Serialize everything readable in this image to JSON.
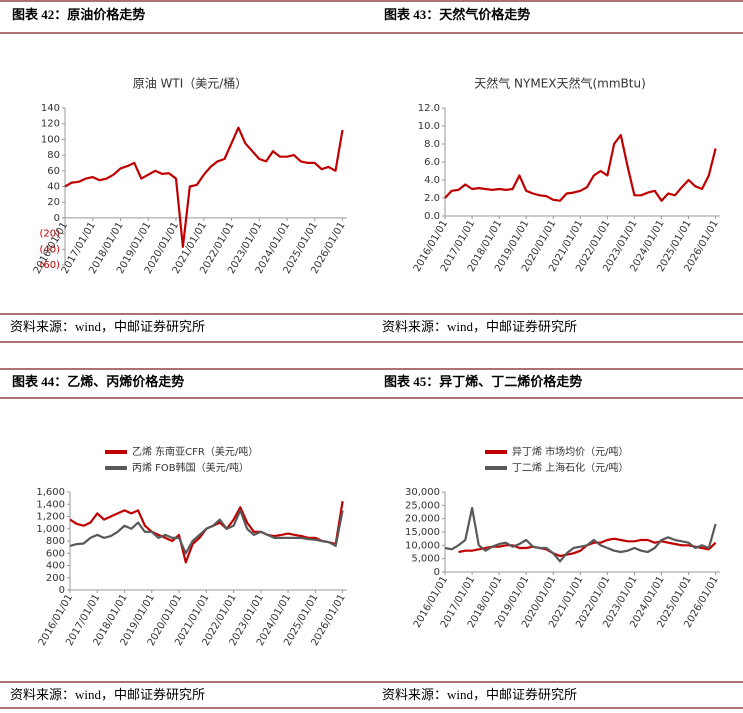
{
  "chart_data": [
    {
      "type": "line",
      "caption": "图表 42：原油价格走势",
      "source": "资料来源：wind，中邮证券研究所",
      "title": "原油 WTI（美元/桶）",
      "x": [
        "2016/01/01",
        "2016/04/01",
        "2016/07/01",
        "2016/10/01",
        "2017/01/01",
        "2017/04/01",
        "2017/07/01",
        "2017/10/01",
        "2018/01/01",
        "2018/04/01",
        "2018/07/01",
        "2018/10/01",
        "2019/01/01",
        "2019/04/01",
        "2019/07/01",
        "2019/10/01",
        "2020/01/01",
        "2020/04/01",
        "2020/07/01",
        "2020/10/01",
        "2021/01/01",
        "2021/04/01",
        "2021/07/01",
        "2021/10/01",
        "2022/01/01",
        "2022/04/01",
        "2022/07/01",
        "2022/10/01",
        "2023/01/01",
        "2023/04/01",
        "2023/07/01",
        "2023/10/01",
        "2024/01/01",
        "2024/04/01",
        "2024/07/01",
        "2024/10/01",
        "2025/01/01",
        "2025/04/01",
        "2025/07/01",
        "2025/10/01",
        "2026/01/01"
      ],
      "values": [
        40,
        45,
        46,
        50,
        52,
        48,
        50,
        55,
        63,
        66,
        70,
        50,
        55,
        60,
        56,
        57,
        50,
        -37,
        40,
        42,
        55,
        65,
        72,
        75,
        95,
        115,
        95,
        85,
        75,
        72,
        85,
        78,
        78,
        80,
        72,
        70,
        70,
        62,
        65,
        60,
        112
      ],
      "color": "#c00000",
      "xlim": [
        "2016/01/01",
        "2026/03/01"
      ],
      "ylim": [
        -60,
        140
      ],
      "yticks": [
        {
          "value": -60,
          "label": "(60)"
        },
        {
          "value": -40,
          "label": "(40)"
        },
        {
          "value": -20,
          "label": "(20)"
        },
        0,
        20,
        40,
        60,
        80,
        100,
        120,
        140
      ],
      "negative_tick_color": "#c00000",
      "xticks": [
        "2016/01/01",
        "2017/01/01",
        "2018/01/01",
        "2019/01/01",
        "2020/01/01",
        "2021/01/01",
        "2022/01/01",
        "2023/01/01",
        "2024/01/01",
        "2025/01/01",
        "2026/01/01"
      ]
    },
    {
      "type": "line",
      "caption": "图表 43：天然气价格走势",
      "source": "资料来源：wind，中邮证券研究所",
      "title": "天然气 NYMEX天然气(mmBtu)",
      "x": [
        "2016/01/01",
        "2016/04/01",
        "2016/07/01",
        "2016/10/01",
        "2017/01/01",
        "2017/04/01",
        "2017/07/01",
        "2017/10/01",
        "2018/01/01",
        "2018/04/01",
        "2018/07/01",
        "2018/10/01",
        "2019/01/01",
        "2019/04/01",
        "2019/07/01",
        "2019/10/01",
        "2020/01/01",
        "2020/04/01",
        "2020/07/01",
        "2020/10/01",
        "2021/01/01",
        "2021/04/01",
        "2021/07/01",
        "2021/10/01",
        "2022/01/01",
        "2022/04/01",
        "2022/07/01",
        "2022/10/01",
        "2023/01/01",
        "2023/04/01",
        "2023/07/01",
        "2023/10/01",
        "2024/01/01",
        "2024/04/01",
        "2024/07/01",
        "2024/10/01",
        "2025/01/01",
        "2025/04/01",
        "2025/07/01",
        "2025/10/01",
        "2026/01/01"
      ],
      "values": [
        2.0,
        2.8,
        2.9,
        3.5,
        3.0,
        3.1,
        3.0,
        2.9,
        3.0,
        2.9,
        3.0,
        4.5,
        2.8,
        2.5,
        2.3,
        2.2,
        1.8,
        1.7,
        2.5,
        2.6,
        2.8,
        3.2,
        4.5,
        5.0,
        4.5,
        8.0,
        9.0,
        5.5,
        2.3,
        2.3,
        2.6,
        2.8,
        1.7,
        2.5,
        2.3,
        3.2,
        4.0,
        3.3,
        3.0,
        4.5,
        7.5
      ],
      "color": "#c00000",
      "xlim": [
        "2016/01/01",
        "2026/03/01"
      ],
      "ylim": [
        0,
        12
      ],
      "yticks": [
        {
          "value": 0,
          "label": "0.0"
        },
        {
          "value": 2,
          "label": "2.0"
        },
        {
          "value": 4,
          "label": "4.0"
        },
        {
          "value": 6,
          "label": "6.0"
        },
        {
          "value": 8,
          "label": "8.0"
        },
        {
          "value": 10,
          "label": "10.0"
        },
        {
          "value": 12,
          "label": "12.0"
        }
      ],
      "xticks": [
        "2016/01/01",
        "2017/01/01",
        "2018/01/01",
        "2019/01/01",
        "2020/01/01",
        "2021/01/01",
        "2022/01/01",
        "2023/01/01",
        "2024/01/01",
        "2025/01/01",
        "2026/01/01"
      ]
    },
    {
      "type": "line",
      "caption": "图表 44：乙烯、丙烯价格走势",
      "source": "资料来源：wind，中邮证券研究所",
      "x": [
        "2016/01/01",
        "2016/04/01",
        "2016/07/01",
        "2016/10/01",
        "2017/01/01",
        "2017/04/01",
        "2017/07/01",
        "2017/10/01",
        "2018/01/01",
        "2018/04/01",
        "2018/07/01",
        "2018/10/01",
        "2019/01/01",
        "2019/04/01",
        "2019/07/01",
        "2019/10/01",
        "2020/01/01",
        "2020/04/01",
        "2020/07/01",
        "2020/10/01",
        "2021/01/01",
        "2021/04/01",
        "2021/07/01",
        "2021/10/01",
        "2022/01/01",
        "2022/04/01",
        "2022/07/01",
        "2022/10/01",
        "2023/01/01",
        "2023/04/01",
        "2023/07/01",
        "2023/10/01",
        "2024/01/01",
        "2024/04/01",
        "2024/07/01",
        "2024/10/01",
        "2025/01/01",
        "2025/04/01",
        "2025/07/01",
        "2025/10/01",
        "2026/01/01"
      ],
      "series": [
        {
          "name": "乙烯 东南亚CFR（美元/吨）",
          "color": "#c00000",
          "values": [
            1150,
            1080,
            1050,
            1100,
            1250,
            1150,
            1200,
            1250,
            1300,
            1250,
            1300,
            1050,
            950,
            900,
            850,
            800,
            900,
            450,
            750,
            850,
            1000,
            1050,
            1100,
            1000,
            1150,
            1350,
            1100,
            950,
            950,
            900,
            880,
            900,
            920,
            900,
            880,
            850,
            850,
            800,
            780,
            750,
            1450
          ]
        },
        {
          "name": "丙烯 FOB韩国（美元/吨）",
          "color": "#595959",
          "values": [
            720,
            750,
            760,
            850,
            900,
            850,
            880,
            950,
            1050,
            1000,
            1100,
            950,
            950,
            850,
            900,
            850,
            850,
            600,
            800,
            900,
            1000,
            1050,
            1150,
            1000,
            1050,
            1300,
            1000,
            900,
            950,
            900,
            850,
            850,
            850,
            850,
            850,
            830,
            820,
            800,
            780,
            720,
            1300
          ]
        }
      ],
      "xlim": [
        "2016/01/01",
        "2026/03/01"
      ],
      "ylim": [
        0,
        1600
      ],
      "yticks": [
        0,
        200,
        400,
        600,
        800,
        {
          "value": 1000,
          "label": "1,000"
        },
        {
          "value": 1200,
          "label": "1,200"
        },
        {
          "value": 1400,
          "label": "1,400"
        },
        {
          "value": 1600,
          "label": "1,600"
        }
      ],
      "xticks": [
        "2016/01/01",
        "2017/01/01",
        "2018/01/01",
        "2019/01/01",
        "2020/01/01",
        "2021/01/01",
        "2022/01/01",
        "2023/01/01",
        "2024/01/01",
        "2025/01/01",
        "2026/01/01"
      ]
    },
    {
      "type": "line",
      "caption": "图表 45：异丁烯、丁二烯价格走势",
      "source": "资料来源：wind，中邮证券研究所",
      "x": [
        "2016/01/01",
        "2016/04/01",
        "2016/07/01",
        "2016/10/01",
        "2017/01/01",
        "2017/04/01",
        "2017/07/01",
        "2017/10/01",
        "2018/01/01",
        "2018/04/01",
        "2018/07/01",
        "2018/10/01",
        "2019/01/01",
        "2019/04/01",
        "2019/07/01",
        "2019/10/01",
        "2020/01/01",
        "2020/04/01",
        "2020/07/01",
        "2020/10/01",
        "2021/01/01",
        "2021/04/01",
        "2021/07/01",
        "2021/10/01",
        "2022/01/01",
        "2022/04/01",
        "2022/07/01",
        "2022/10/01",
        "2023/01/01",
        "2023/04/01",
        "2023/07/01",
        "2023/10/01",
        "2024/01/01",
        "2024/04/01",
        "2024/07/01",
        "2024/10/01",
        "2025/01/01",
        "2025/04/01",
        "2025/07/01",
        "2025/10/01",
        "2026/01/01"
      ],
      "series": [
        {
          "name": "异丁烯 市场均价（元/吨）",
          "color": "#c00000",
          "values": [
            null,
            null,
            7500,
            8000,
            8000,
            8500,
            9000,
            9500,
            9500,
            10000,
            10000,
            9000,
            9000,
            9500,
            9000,
            8500,
            7000,
            6000,
            6500,
            7000,
            8000,
            10000,
            11000,
            11000,
            12000,
            12500,
            12000,
            11500,
            11500,
            12000,
            12000,
            11000,
            11500,
            11000,
            10500,
            10000,
            10000,
            9500,
            9000,
            8500,
            11000
          ]
        },
        {
          "name": "丁二烯 上海石化（元/吨）",
          "color": "#595959",
          "values": [
            9000,
            8500,
            10000,
            12000,
            24000,
            10000,
            8000,
            9500,
            10500,
            11000,
            9500,
            10500,
            12000,
            9500,
            9000,
            9000,
            7000,
            4000,
            7000,
            9000,
            9500,
            10000,
            12000,
            10000,
            9000,
            8000,
            7500,
            8000,
            9000,
            8000,
            7500,
            9000,
            12000,
            13000,
            12000,
            11500,
            11000,
            9000,
            10000,
            9000,
            18000
          ]
        }
      ],
      "xlim": [
        "2016/01/01",
        "2026/03/01"
      ],
      "ylim": [
        0,
        30000
      ],
      "yticks": [
        0,
        {
          "value": 5000,
          "label": "5,000"
        },
        {
          "value": 10000,
          "label": "10,000"
        },
        {
          "value": 15000,
          "label": "15,000"
        },
        {
          "value": 20000,
          "label": "20,000"
        },
        {
          "value": 25000,
          "label": "25,000"
        },
        {
          "value": 30000,
          "label": "30,000"
        }
      ],
      "xticks": [
        "2016/01/01",
        "2017/01/01",
        "2018/01/01",
        "2019/01/01",
        "2020/01/01",
        "2021/01/01",
        "2022/01/01",
        "2023/01/01",
        "2024/01/01",
        "2025/01/01",
        "2026/01/01"
      ]
    }
  ]
}
